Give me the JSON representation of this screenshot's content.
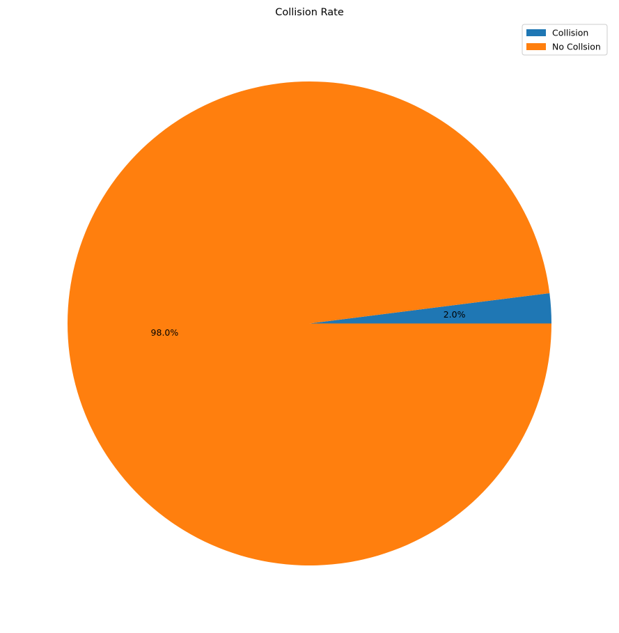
{
  "chart_data": {
    "type": "pie",
    "title": "Collision Rate",
    "slices": [
      {
        "label": "Collision",
        "value": 2.0,
        "pct_label": "2.0%",
        "color": "#1f77b4"
      },
      {
        "label": "No Collsion",
        "value": 98.0,
        "pct_label": "98.0%",
        "color": "#ff7f0e"
      }
    ],
    "start_angle_deg": 0,
    "direction": "counterclockwise",
    "legend_position": "top-right"
  }
}
